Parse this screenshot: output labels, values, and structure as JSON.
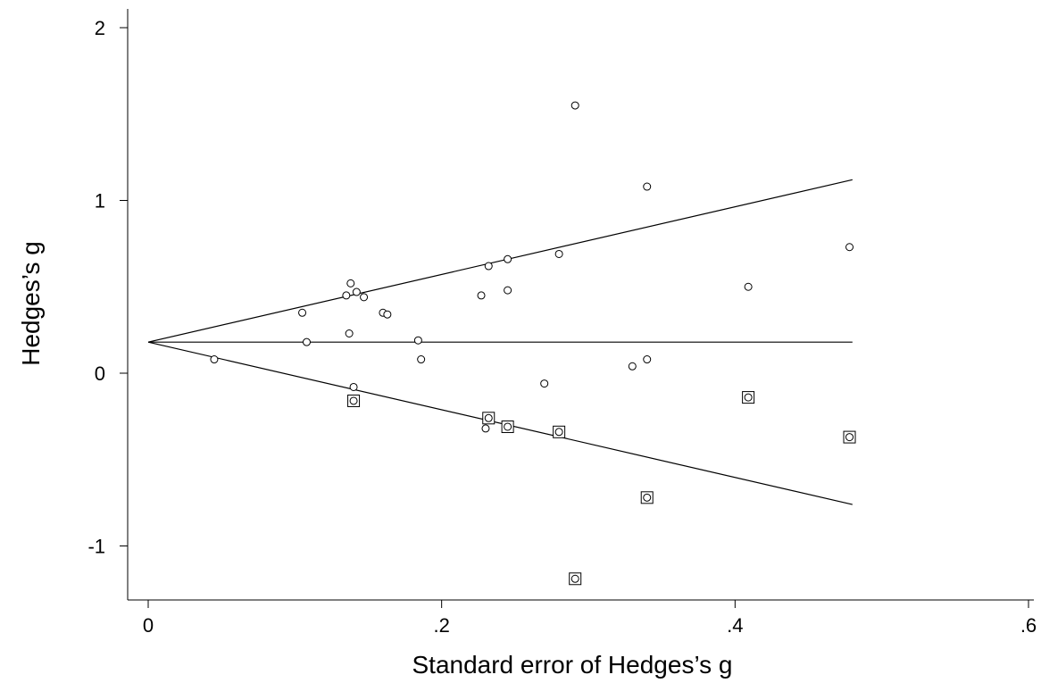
{
  "chart_data": {
    "type": "scatter",
    "title": "",
    "xlabel": "Standard error of Hedges’s g",
    "ylabel": "Hedges’s g",
    "xlim": [
      0,
      0.6
    ],
    "ylim": [
      -1.3,
      2.1
    ],
    "x_ticks": [
      0,
      0.2,
      0.4,
      0.6
    ],
    "x_tick_labels": [
      "0",
      ".2",
      ".4",
      ".6"
    ],
    "y_ticks": [
      -1,
      0,
      1,
      2
    ],
    "y_tick_labels": [
      "-1",
      "0",
      "1",
      "2"
    ],
    "grid": false,
    "legend": "none",
    "pooled_estimate": 0.18,
    "funnel": {
      "vertex": [
        0,
        0.18
      ],
      "se_max": 0.48,
      "upper_end": 1.12,
      "lower_end": -0.76
    },
    "series": [
      {
        "marker": "circle",
        "x": [
          0.045,
          0.105,
          0.108,
          0.135,
          0.137,
          0.138,
          0.14,
          0.142,
          0.147,
          0.16,
          0.163,
          0.184,
          0.186,
          0.227,
          0.232,
          0.245,
          0.245,
          0.28,
          0.291,
          0.27,
          0.33,
          0.34,
          0.34,
          0.409,
          0.478
        ],
        "y": [
          0.08,
          0.35,
          0.18,
          0.45,
          0.23,
          0.52,
          -0.08,
          0.47,
          0.44,
          0.35,
          0.34,
          0.19,
          0.08,
          0.45,
          0.62,
          0.66,
          0.48,
          0.69,
          1.55,
          -0.06,
          0.04,
          0.08,
          1.08,
          0.5,
          0.73
        ]
      },
      {
        "marker": "circle",
        "x": [
          0.23
        ],
        "y": [
          -0.32
        ]
      },
      {
        "marker": "circle-in-square",
        "x": [
          0.14,
          0.232,
          0.245,
          0.28,
          0.291,
          0.34,
          0.409,
          0.478
        ],
        "y": [
          -0.16,
          -0.26,
          -0.31,
          -0.34,
          -1.19,
          -0.72,
          -0.14,
          -0.37
        ]
      }
    ]
  }
}
